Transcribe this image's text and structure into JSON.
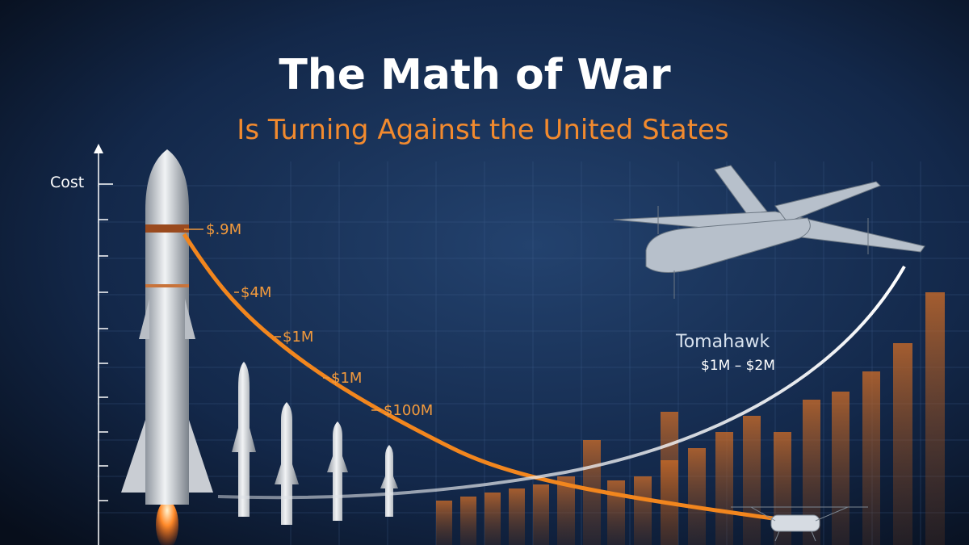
{
  "header": {
    "title": "The Math of War",
    "subtitle": "Is Turning Against the United States"
  },
  "axis": {
    "label": "Cost"
  },
  "annotations": {
    "interceptor_costs": [
      "$.9M",
      "$4M",
      "$1M",
      "$1M",
      "$100M"
    ],
    "drone": {
      "name": "Tomahawk",
      "cost": "$1M – $2M"
    }
  }
}
